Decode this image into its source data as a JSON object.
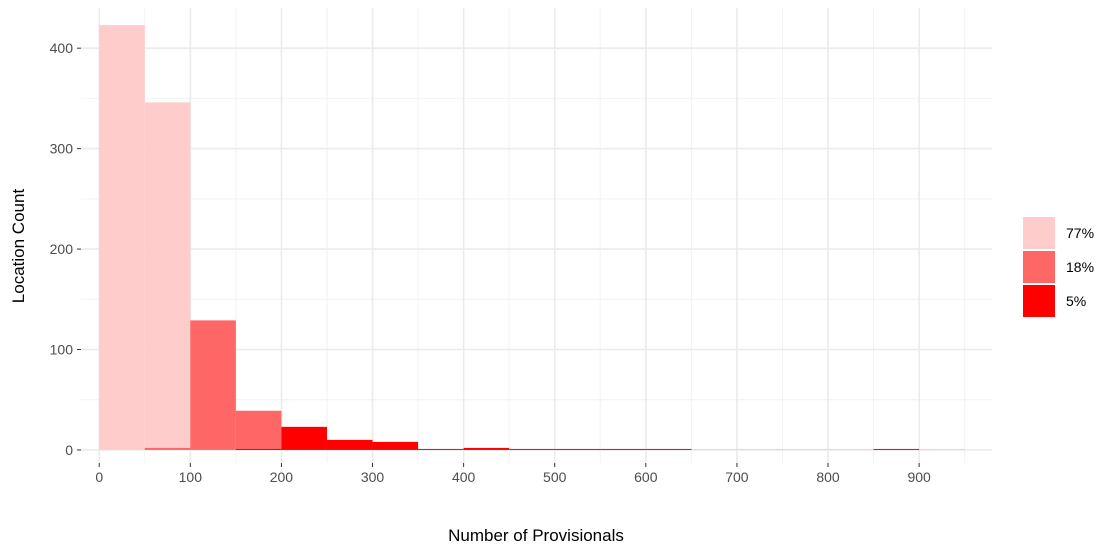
{
  "chart_data": {
    "type": "bar",
    "title": "",
    "xlabel": "Number of Provisionals",
    "ylabel": "Location Count",
    "xlim": [
      -20,
      980
    ],
    "ylim": [
      -13,
      440
    ],
    "x_ticks": [
      0,
      100,
      200,
      300,
      400,
      500,
      600,
      700,
      800,
      900
    ],
    "y_ticks": [
      0,
      100,
      200,
      300,
      400
    ],
    "bin_width": 50,
    "grid": true,
    "legend_position": "right",
    "series": [
      {
        "name": "77%",
        "color": "#FFCCCC",
        "bins": [
          {
            "x0": 0,
            "x1": 50,
            "count": 423
          },
          {
            "x0": 50,
            "x1": 100,
            "count": 346
          },
          {
            "x0": 650,
            "x1": 700,
            "count": 1
          },
          {
            "x0": 700,
            "x1": 750,
            "count": 1
          },
          {
            "x0": 750,
            "x1": 800,
            "count": 1
          },
          {
            "x0": 800,
            "x1": 850,
            "count": 1
          },
          {
            "x0": 900,
            "x1": 950,
            "count": 1
          }
        ]
      },
      {
        "name": "18%",
        "color": "#FF6666",
        "bins": [
          {
            "x0": 50,
            "x1": 100,
            "count": 2
          },
          {
            "x0": 100,
            "x1": 150,
            "count": 129
          },
          {
            "x0": 150,
            "x1": 200,
            "count": 39
          }
        ]
      },
      {
        "name": "5%",
        "color": "#FF0000",
        "bins": [
          {
            "x0": 150,
            "x1": 200,
            "count": 1
          },
          {
            "x0": 200,
            "x1": 250,
            "count": 23
          },
          {
            "x0": 250,
            "x1": 300,
            "count": 10
          },
          {
            "x0": 300,
            "x1": 350,
            "count": 8
          },
          {
            "x0": 350,
            "x1": 400,
            "count": 1
          },
          {
            "x0": 400,
            "x1": 450,
            "count": 2
          },
          {
            "x0": 450,
            "x1": 500,
            "count": 1
          },
          {
            "x0": 500,
            "x1": 550,
            "count": 1
          },
          {
            "x0": 550,
            "x1": 600,
            "count": 1
          },
          {
            "x0": 600,
            "x1": 650,
            "count": 1
          },
          {
            "x0": 850,
            "x1": 900,
            "count": 1
          }
        ]
      }
    ]
  }
}
